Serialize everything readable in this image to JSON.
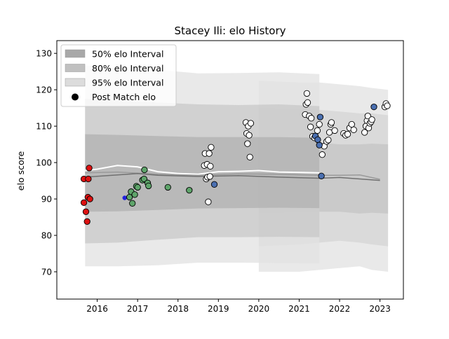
{
  "chart_data": {
    "type": "scatter",
    "title": "Stacey Ili: elo History",
    "xlabel": "",
    "ylabel": "elo score",
    "xlim": [
      2015.0,
      2023.58
    ],
    "ylim": [
      62.5,
      133.5
    ],
    "x_ticks": [
      2016,
      2017,
      2018,
      2019,
      2020,
      2021,
      2022,
      2023
    ],
    "y_ticks": [
      70,
      80,
      90,
      100,
      110,
      120,
      130
    ],
    "legend_position": "top-left",
    "legend": [
      {
        "label": "50% elo Interval",
        "kind": "band",
        "color": "#b0b0b0"
      },
      {
        "label": "80% elo Interval",
        "kind": "band",
        "color": "#c8c8c8"
      },
      {
        "label": "95% elo Interval",
        "kind": "band",
        "color": "#e2e2e2"
      },
      {
        "label": "Post Match elo",
        "kind": "marker",
        "color": "#000000"
      }
    ],
    "interval_bands": [
      {
        "name": "95% elo Interval",
        "color": "#e2e2e2",
        "x": [
          2015.7,
          2016.5,
          2017.5,
          2018.5,
          2019.5,
          2020.5,
          2021.5
        ],
        "lower": [
          71.5,
          71.5,
          71.8,
          72.5,
          72.5,
          72.4,
          72.3
        ],
        "upper": [
          126.7,
          126.0,
          125.5,
          124.5,
          124.6,
          124.8,
          124.3
        ]
      },
      {
        "name": "80% elo Interval",
        "color": "#c8c8c8",
        "x": [
          2015.7,
          2016.5,
          2017.5,
          2018.5,
          2019.5,
          2020.5,
          2021.5
        ],
        "lower": [
          77.8,
          78.0,
          78.8,
          79.5,
          79.5,
          79.6,
          79.5
        ],
        "upper": [
          117.5,
          117.0,
          116.5,
          116.0,
          115.8,
          116.0,
          115.5
        ]
      },
      {
        "name": "50% elo Interval",
        "color": "#b0b0b0",
        "x": [
          2015.7,
          2016.5,
          2017.5,
          2018.5,
          2019.5,
          2020.5,
          2021.5
        ],
        "lower": [
          86.5,
          86.6,
          87.0,
          87.4,
          87.5,
          87.6,
          87.5
        ],
        "upper": [
          107.8,
          107.6,
          107.3,
          107.0,
          107.0,
          107.0,
          106.8
        ]
      }
    ],
    "right_bands": [
      {
        "color": "#e2e2e2",
        "x": [
          2020.0,
          2021.0,
          2021.5,
          2022.0,
          2022.5,
          2022.8,
          2023.2
        ],
        "lower": [
          70.0,
          70.0,
          70.5,
          71.0,
          71.5,
          70.5,
          70.0
        ],
        "upper": [
          122.5,
          122.0,
          122.0,
          121.5,
          121.0,
          120.5,
          120.0
        ]
      },
      {
        "color": "#d4d4d4",
        "x": [
          2020.0,
          2021.0,
          2021.5,
          2022.0,
          2022.5,
          2022.8,
          2023.2
        ],
        "lower": [
          77.0,
          77.5,
          78.0,
          78.5,
          78.0,
          77.5,
          77.0
        ],
        "upper": [
          115.0,
          114.8,
          114.5,
          114.0,
          113.5,
          113.5,
          113.0
        ]
      },
      {
        "color": "#c4c4c4",
        "x": [
          2020.0,
          2021.0,
          2021.5,
          2022.0,
          2022.5,
          2022.8,
          2023.2
        ],
        "lower": [
          86.0,
          86.3,
          86.5,
          86.5,
          86.0,
          86.2,
          86.0
        ],
        "upper": [
          106.0,
          106.0,
          105.5,
          105.0,
          105.0,
          105.2,
          105.0
        ]
      }
    ],
    "rating_lines": [
      {
        "color": "#ffffff",
        "width": 2,
        "x": [
          2015.7,
          2016.0,
          2016.5,
          2017.0,
          2017.5,
          2018.0,
          2018.5,
          2019.0,
          2019.5,
          2020.0,
          2020.5,
          2021.0,
          2021.5
        ],
        "y": [
          97.8,
          98.2,
          99.2,
          98.8,
          97.5,
          97.0,
          96.8,
          97.5,
          97.6,
          97.8,
          97.4,
          97.3,
          97.2
        ]
      },
      {
        "color": "#9a9a9a",
        "width": 1.5,
        "x": [
          2015.7,
          2016.5,
          2017.5,
          2018.5,
          2019.5,
          2020.5,
          2021.5,
          2022.0,
          2022.5,
          2023.0
        ],
        "y": [
          97.2,
          97.4,
          96.8,
          96.5,
          96.9,
          96.8,
          96.5,
          96.5,
          96.6,
          95.4
        ]
      },
      {
        "color": "#707070",
        "width": 1.5,
        "x": [
          2015.7,
          2016.5,
          2017.0,
          2017.5,
          2018.5,
          2019.5,
          2020.5,
          2021.5,
          2022.0,
          2022.5,
          2023.0
        ],
        "y": [
          96.0,
          96.6,
          97.0,
          96.5,
          96.2,
          96.4,
          96.0,
          95.7,
          95.9,
          95.5,
          95.1
        ]
      }
    ],
    "series": [
      {
        "name": "Post Match elo",
        "color": "#dd1111",
        "points": [
          [
            2015.67,
            95.5
          ],
          [
            2015.67,
            89.0
          ],
          [
            2015.72,
            86.5
          ],
          [
            2015.75,
            83.8
          ],
          [
            2015.77,
            90.5
          ],
          [
            2015.78,
            95.5
          ],
          [
            2015.8,
            98.5
          ],
          [
            2015.82,
            90.0
          ]
        ]
      },
      {
        "color": "#2222dd",
        "small": true,
        "points": [
          [
            2016.68,
            90.3
          ]
        ]
      },
      {
        "color": "#5ea46a",
        "points": [
          [
            2016.8,
            90.5
          ],
          [
            2016.84,
            92.0
          ],
          [
            2016.87,
            88.8
          ],
          [
            2016.93,
            91.2
          ],
          [
            2016.97,
            93.5
          ],
          [
            2017.0,
            93.2
          ],
          [
            2017.12,
            95.2
          ],
          [
            2017.16,
            95.5
          ],
          [
            2017.17,
            98.0
          ],
          [
            2017.25,
            94.4
          ],
          [
            2017.27,
            93.6
          ],
          [
            2017.75,
            93.2
          ],
          [
            2018.28,
            92.4
          ]
        ]
      },
      {
        "color": "#ffffff",
        "points": [
          [
            2018.65,
            99.2
          ],
          [
            2018.67,
            102.5
          ],
          [
            2018.7,
            95.5
          ],
          [
            2018.72,
            99.5
          ],
          [
            2018.73,
            96.0
          ],
          [
            2018.75,
            89.2
          ],
          [
            2018.77,
            102.5
          ],
          [
            2018.79,
            96.2
          ],
          [
            2018.8,
            99.0
          ],
          [
            2018.82,
            104.2
          ],
          [
            2019.68,
            111.0
          ],
          [
            2019.7,
            108.0
          ],
          [
            2019.72,
            105.2
          ],
          [
            2019.74,
            110.0
          ],
          [
            2019.76,
            107.5
          ],
          [
            2019.78,
            101.5
          ],
          [
            2019.8,
            110.8
          ],
          [
            2021.15,
            113.2
          ],
          [
            2021.17,
            116.0
          ],
          [
            2021.19,
            119.0
          ],
          [
            2021.21,
            116.5
          ],
          [
            2021.25,
            112.8
          ],
          [
            2021.28,
            109.8
          ],
          [
            2021.3,
            112.2
          ],
          [
            2021.33,
            107.2
          ],
          [
            2021.38,
            106.8
          ],
          [
            2021.45,
            108.8
          ],
          [
            2021.5,
            110.5
          ],
          [
            2021.57,
            102.2
          ],
          [
            2021.62,
            104.5
          ],
          [
            2021.68,
            105.8
          ],
          [
            2021.72,
            106.2
          ],
          [
            2021.75,
            108.3
          ],
          [
            2021.78,
            110.5
          ],
          [
            2021.8,
            111.0
          ],
          [
            2021.88,
            108.8
          ],
          [
            2022.1,
            108.0
          ],
          [
            2022.15,
            107.5
          ],
          [
            2022.2,
            107.8
          ],
          [
            2022.25,
            109.5
          ],
          [
            2022.3,
            110.5
          ],
          [
            2022.35,
            109.0
          ],
          [
            2022.62,
            108.3
          ],
          [
            2022.65,
            110.0
          ],
          [
            2022.68,
            111.5
          ],
          [
            2022.7,
            112.8
          ],
          [
            2022.72,
            109.5
          ],
          [
            2022.75,
            110.8
          ],
          [
            2022.78,
            111.2
          ],
          [
            2022.8,
            111.8
          ],
          [
            2023.12,
            115.3
          ],
          [
            2023.15,
            116.2
          ],
          [
            2023.18,
            115.6
          ]
        ]
      },
      {
        "color": "#4a6fb0",
        "points": [
          [
            2018.9,
            94.0
          ],
          [
            2021.4,
            107.3
          ],
          [
            2021.46,
            106.3
          ],
          [
            2021.5,
            104.8
          ],
          [
            2021.52,
            112.5
          ],
          [
            2021.55,
            96.3
          ],
          [
            2022.85,
            115.3
          ]
        ]
      }
    ]
  }
}
